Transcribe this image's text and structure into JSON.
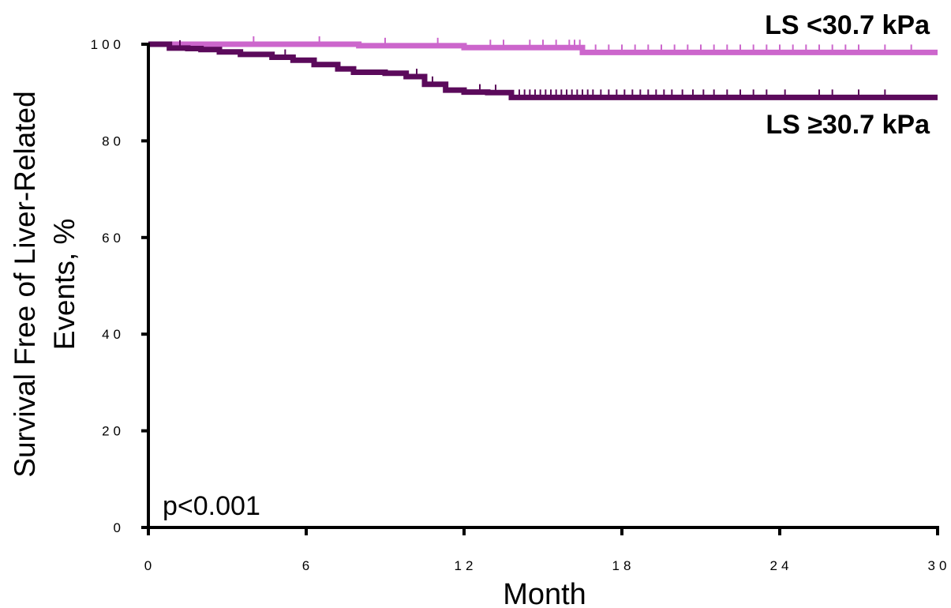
{
  "chart_data": {
    "type": "line",
    "subtype": "kaplan-meier",
    "xlabel": "Month",
    "ylabel": "Survival Free of Liver-Related Events, %",
    "xlim": [
      0,
      30
    ],
    "ylim": [
      0,
      100
    ],
    "xticks": [
      "0",
      "6",
      "12",
      "18",
      "24",
      "30"
    ],
    "yticks": [
      "0",
      "20",
      "40",
      "60",
      "80",
      "100"
    ],
    "grid": false,
    "annotation": "p<0.001",
    "series": [
      {
        "name": "LS <30.7 kPa",
        "color": "#cc66cc",
        "x": [
          0,
          8,
          12,
          16.5,
          30
        ],
        "y": [
          100,
          99.7,
          99.3,
          98.3,
          98.3
        ],
        "censor_x": [
          4,
          6.5,
          9,
          11,
          13,
          13.5,
          14.5,
          15,
          15.5,
          16,
          16.2,
          16.4,
          17,
          17.5,
          18,
          18.5,
          19,
          19.5,
          20,
          20.5,
          21,
          21.5,
          22,
          22.5,
          23,
          23.5,
          24,
          24.5,
          25,
          25.5,
          26,
          26.5,
          27,
          28,
          29
        ]
      },
      {
        "name": "LS ≥30.7 kPa",
        "color": "#5b0a5b",
        "x": [
          0,
          0.8,
          1.5,
          2,
          2.7,
          3.5,
          4.7,
          5.5,
          6.3,
          7.2,
          7.8,
          9,
          9.8,
          10.5,
          11.3,
          12,
          12.9,
          13.8,
          30
        ],
        "y": [
          100,
          99.2,
          99.1,
          98.9,
          98.4,
          97.9,
          97.3,
          96.7,
          95.8,
          94.9,
          94.2,
          94.0,
          93.3,
          91.7,
          90.5,
          90.1,
          90.0,
          89.0,
          89.0
        ],
        "censor_x": [
          1.2,
          5.2,
          10.2,
          10.8,
          12.6,
          13.2,
          14.1,
          14.3,
          14.5,
          14.7,
          14.9,
          15.1,
          15.3,
          15.5,
          15.7,
          15.9,
          16.1,
          16.3,
          16.5,
          16.7,
          16.9,
          17.2,
          17.5,
          17.8,
          18.1,
          18.4,
          18.7,
          19,
          19.3,
          19.6,
          19.9,
          20.3,
          20.7,
          21.1,
          21.5,
          22,
          22.5,
          23,
          23.5,
          24.2,
          25.5,
          26,
          27,
          28
        ]
      }
    ]
  }
}
